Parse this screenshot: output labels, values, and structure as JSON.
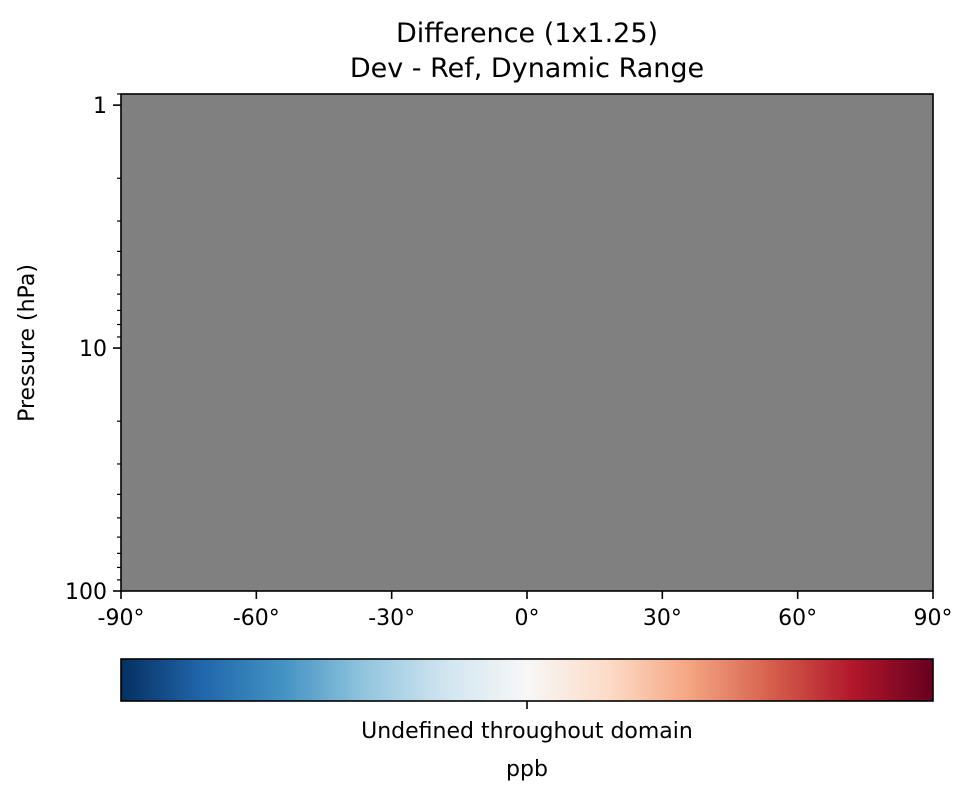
{
  "chart_data": {
    "type": "heatmap",
    "title": "Difference (1x1.25)",
    "subtitle": "Dev - Ref, Dynamic Range",
    "xlabel": "",
    "ylabel": "Pressure (hPa)",
    "x_ticks": [
      "-90°",
      "-60°",
      "-30°",
      "0°",
      "30°",
      "60°",
      "90°"
    ],
    "x_tick_values": [
      -90,
      -60,
      -30,
      0,
      30,
      60,
      90
    ],
    "xlim": [
      -90,
      90
    ],
    "y_scale": "log",
    "y_inverted": true,
    "y_ticks": [
      "1",
      "10",
      "100"
    ],
    "y_tick_values": [
      1,
      10,
      100
    ],
    "ylim": [
      100,
      0.9
    ],
    "field_fill_color": "#808080",
    "field_state": "undefined",
    "colorbar": {
      "colormap": "RdBu_r",
      "label": "Undefined throughout domain",
      "units": "ppb",
      "stops": [
        "#053061",
        "#2166ac",
        "#4393c3",
        "#92c5de",
        "#d1e5f0",
        "#f7f7f7",
        "#fddbc7",
        "#f4a582",
        "#d6604d",
        "#b2182b",
        "#67001f"
      ]
    },
    "grid": false,
    "legend": "none"
  }
}
